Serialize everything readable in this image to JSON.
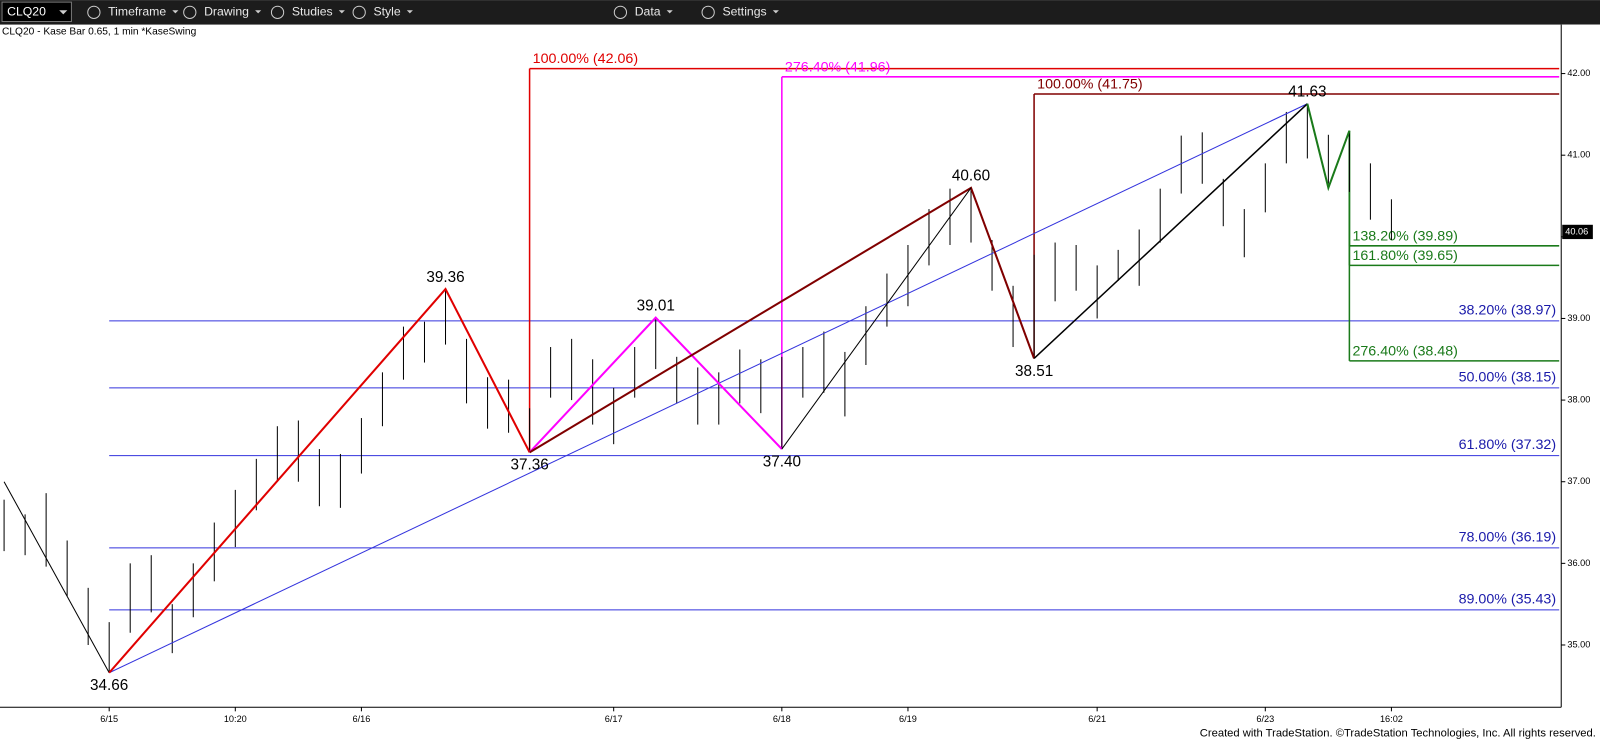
{
  "toolbar": {
    "symbol": "CLQ20",
    "items": [
      "Timeframe",
      "Drawing",
      "Studies",
      "Style",
      "Data",
      "Settings"
    ]
  },
  "chart": {
    "label": "CLQ20 - Kase Bar 0.65, 1 min  *KaseSwing",
    "last_price": {
      "value": 40.06,
      "label": "40.06"
    },
    "yticks": [
      {
        "value": 42,
        "label": "42.00"
      },
      {
        "value": 41,
        "label": "41.00"
      },
      {
        "value": 40,
        "label": "40.00"
      },
      {
        "value": 39,
        "label": "39.00"
      },
      {
        "value": 38,
        "label": "38.00"
      },
      {
        "value": 37,
        "label": "37.00"
      },
      {
        "value": 36,
        "label": "36.00"
      },
      {
        "value": 35,
        "label": "35.00"
      }
    ],
    "xlabels": [
      {
        "index": 5,
        "label": "6/15"
      },
      {
        "index": 11,
        "label": "10:20"
      },
      {
        "index": 17,
        "label": "6/16"
      },
      {
        "index": 29,
        "label": "6/17"
      },
      {
        "index": 37,
        "label": "6/18"
      },
      {
        "index": 43,
        "label": "6/19"
      },
      {
        "index": 52,
        "label": "6/21"
      },
      {
        "index": 60,
        "label": "6/23"
      },
      {
        "index": 66,
        "label": "16:02"
      }
    ],
    "bars": {
      "high": [
        36.78,
        36.6,
        36.86,
        36.28,
        35.7,
        35.28,
        36.0,
        36.1,
        35.5,
        36.0,
        36.5,
        36.9,
        37.28,
        37.68,
        37.75,
        37.4,
        37.34,
        37.78,
        38.34,
        38.9,
        38.96,
        39.36,
        38.75,
        38.28,
        38.25,
        37.9,
        38.65,
        38.75,
        38.5,
        38.15,
        38.65,
        39.01,
        38.53,
        38.4,
        38.34,
        38.62,
        38.5,
        38.53,
        38.65,
        38.84,
        38.59,
        39.15,
        39.55,
        39.9,
        40.34,
        40.59,
        40.6,
        39.96,
        39.4,
        39.78,
        39.93,
        39.9,
        39.65,
        39.84,
        40.09,
        40.59,
        41.24,
        41.28,
        40.71,
        40.34,
        40.9,
        41.53,
        41.63,
        41.25,
        41.28,
        40.9,
        40.46
      ],
      "low": [
        36.15,
        36.1,
        35.96,
        35.6,
        35.0,
        34.66,
        35.15,
        35.4,
        34.9,
        35.34,
        35.78,
        36.2,
        36.65,
        37.0,
        37.0,
        36.7,
        36.68,
        37.1,
        37.68,
        38.25,
        38.46,
        38.68,
        37.96,
        37.65,
        37.6,
        37.36,
        38.03,
        38.0,
        37.7,
        37.46,
        38.03,
        38.38,
        37.96,
        37.7,
        37.7,
        37.96,
        37.84,
        37.4,
        38.03,
        38.09,
        37.8,
        38.43,
        38.9,
        39.15,
        39.65,
        39.9,
        39.93,
        39.34,
        38.65,
        38.51,
        39.21,
        39.34,
        39.0,
        39.46,
        39.4,
        39.93,
        40.53,
        40.65,
        40.13,
        39.75,
        40.3,
        40.9,
        40.96,
        40.65,
        40.55,
        40.21,
        39.96
      ]
    },
    "swing_labels": [
      {
        "index": 5,
        "price": 34.66,
        "label": "34.66"
      },
      {
        "index": 21,
        "price": 39.36,
        "label": "39.36"
      },
      {
        "index": 25,
        "price": 37.36,
        "label": "37.36"
      },
      {
        "index": 31,
        "price": 39.01,
        "label": "39.01"
      },
      {
        "index": 37,
        "price": 37.4,
        "label": "37.40"
      },
      {
        "index": 46,
        "price": 40.6,
        "label": "40.60"
      },
      {
        "index": 49,
        "price": 38.51,
        "label": "38.51"
      },
      {
        "index": 62,
        "price": 41.63,
        "label": "41.63"
      }
    ],
    "lines": [
      {
        "color": "#000000",
        "width": 1,
        "points": [
          [
            0,
            37.0
          ],
          [
            5,
            34.66
          ]
        ]
      },
      {
        "color": "#3333dd",
        "width": 1,
        "points": [
          [
            5,
            34.66
          ],
          [
            62,
            41.63
          ]
        ]
      },
      {
        "color": "#e00000",
        "width": 2,
        "points": [
          [
            5,
            34.66
          ],
          [
            21,
            39.36
          ],
          [
            25,
            37.36
          ]
        ]
      },
      {
        "color": "#ff00ff",
        "width": 2,
        "points": [
          [
            25,
            37.36
          ],
          [
            31,
            39.01
          ],
          [
            37,
            37.4
          ]
        ]
      },
      {
        "color": "#800000",
        "width": 2,
        "points": [
          [
            25,
            37.36
          ],
          [
            46,
            40.6
          ],
          [
            49,
            38.51
          ]
        ]
      },
      {
        "color": "#000000",
        "width": 1,
        "points": [
          [
            37,
            37.4
          ],
          [
            46,
            40.6
          ]
        ]
      },
      {
        "color": "#000000",
        "width": 1.5,
        "points": [
          [
            49,
            38.51
          ],
          [
            62,
            41.63
          ]
        ]
      },
      {
        "color": "#1a7a1a",
        "width": 2,
        "points": [
          [
            62,
            41.63
          ],
          [
            63,
            40.6
          ],
          [
            64,
            41.3
          ]
        ]
      }
    ],
    "retracements": [
      {
        "price": 38.97,
        "label": "38.20% (38.97)"
      },
      {
        "price": 38.15,
        "label": "50.00% (38.15)"
      },
      {
        "price": 37.32,
        "label": "61.80% (37.32)"
      },
      {
        "price": 36.19,
        "label": "78.00% (36.19)"
      },
      {
        "price": 35.43,
        "label": "89.00% (35.43)"
      }
    ],
    "retracement_color": "#3333dd",
    "retracement_start": 5,
    "projections": [
      {
        "start": 25,
        "anchor": 37.36,
        "price": 42.06,
        "label": "100.00% (42.06)",
        "color": "#e00000"
      },
      {
        "start": 37,
        "anchor": 37.4,
        "price": 41.96,
        "label": "276.40% (41.96)",
        "color": "#ff00ff"
      },
      {
        "start": 49,
        "anchor": 38.51,
        "price": 41.75,
        "label": "100.00% (41.75)",
        "color": "#800000"
      },
      {
        "start": 64,
        "anchor": 41.3,
        "price": 39.89,
        "label": "138.20% (39.89)",
        "color": "#1a7a1a"
      },
      {
        "start": 64,
        "anchor": 41.3,
        "price": 39.65,
        "label": "161.80% (39.65)",
        "color": "#1a7a1a"
      },
      {
        "start": 64,
        "anchor": 41.3,
        "price": 38.48,
        "label": "276.40% (38.48)",
        "color": "#1a7a1a"
      }
    ]
  },
  "footer": "Created with TradeStation. ©TradeStation Technologies, Inc. All rights reserved."
}
